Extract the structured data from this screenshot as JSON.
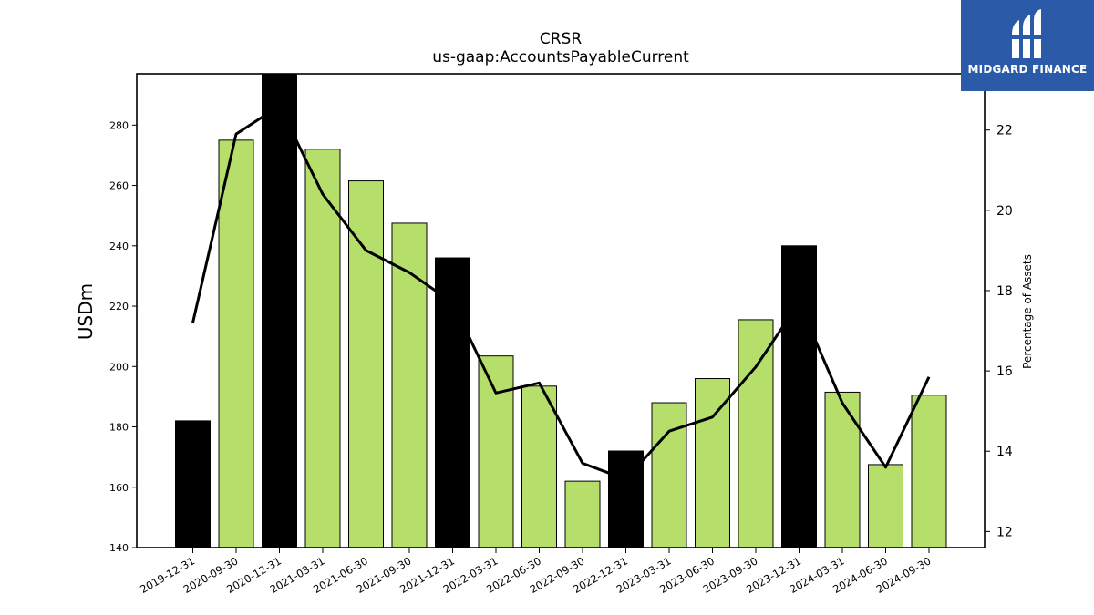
{
  "chart_data": {
    "type": "bar",
    "title": "CRSR",
    "subtitle": "us-gaap:AccountsPayableCurrent",
    "ylabel": "USDm",
    "y2label": "Percentage of Assets",
    "categories": [
      "2019-12-31",
      "2020-09-30",
      "2020-12-31",
      "2021-03-31",
      "2021-06-30",
      "2021-09-30",
      "2021-12-31",
      "2022-03-31",
      "2022-06-30",
      "2022-09-30",
      "2022-12-31",
      "2023-03-31",
      "2023-06-30",
      "2023-09-30",
      "2023-12-31",
      "2024-03-31",
      "2024-06-30",
      "2024-09-30"
    ],
    "values": [
      182.0,
      275.0,
      297.0,
      272.0,
      261.5,
      247.5,
      236.0,
      203.5,
      193.5,
      162.0,
      172.0,
      188.0,
      196.0,
      215.5,
      240.0,
      191.5,
      167.5,
      190.5
    ],
    "bar_colors": [
      "#000000",
      "#b5df6a",
      "#000000",
      "#b5df6a",
      "#b5df6a",
      "#b5df6a",
      "#000000",
      "#b5df6a",
      "#b5df6a",
      "#b5df6a",
      "#000000",
      "#b5df6a",
      "#b5df6a",
      "#b5df6a",
      "#000000",
      "#b5df6a",
      "#b5df6a",
      "#b5df6a"
    ],
    "line_series": {
      "axis": "right",
      "color": "#000000",
      "values": [
        17.2,
        21.9,
        22.6,
        20.4,
        19.0,
        18.45,
        17.7,
        15.45,
        15.7,
        13.7,
        13.3,
        14.5,
        14.85,
        16.1,
        17.7,
        15.2,
        13.6,
        15.85
      ]
    },
    "ylim": [
      140,
      297
    ],
    "y_ticks": [
      140,
      160,
      180,
      200,
      220,
      240,
      260,
      280
    ],
    "y2lim": [
      11.6,
      23.4
    ],
    "y2_ticks": [
      12,
      14,
      16,
      18,
      20,
      22
    ],
    "grid": false,
    "legend": "none"
  },
  "logo": {
    "text": "MIDGARD FINANCE",
    "background": "#2b5aa8"
  }
}
